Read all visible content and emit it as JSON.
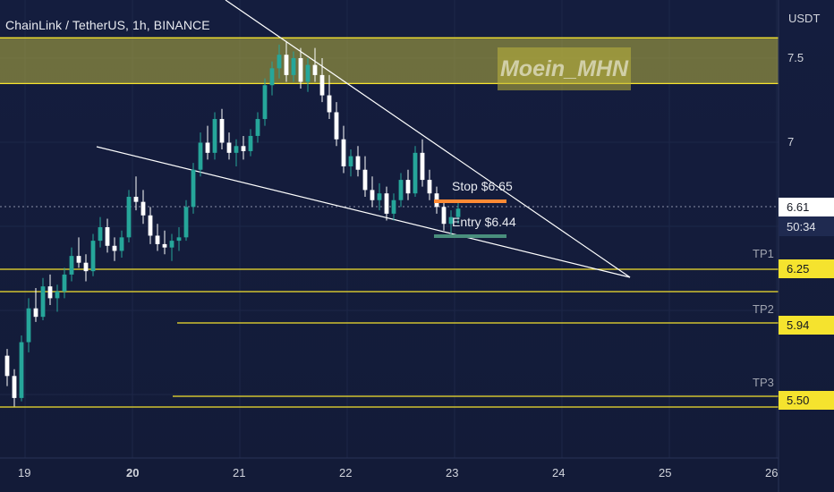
{
  "title": "ChainLink / TetherUS, 1h, BINANCE",
  "currency": "USDT",
  "watermark": "Moein_MHN",
  "colors": {
    "up": "#26a69a",
    "down": "#ffffff",
    "level": "#f5e32e",
    "zone": "#b8b240",
    "stop": "#ff8a35",
    "entry": "#4a8f7d"
  },
  "chart_data": {
    "type": "candlestick",
    "y_ticks": [
      7.5,
      7.0
    ],
    "x_ticks": [
      "19",
      "20",
      "21",
      "22",
      "23",
      "24",
      "25",
      "26"
    ],
    "last_price": "6.61",
    "countdown": "50:34",
    "resistance_zone": [
      7.35,
      7.62
    ],
    "levels": [
      {
        "label": "TP1",
        "value": "6.25"
      },
      {
        "label": "TP2",
        "value": "5.94"
      },
      {
        "label": "TP3",
        "value": "5.50"
      }
    ],
    "stop": {
      "label": "Stop $6.65",
      "value": 6.65
    },
    "entry": {
      "label": "Entry $6.44",
      "value": 6.44
    },
    "candles": [
      [
        5.74,
        5.78,
        5.56,
        5.62
      ],
      [
        5.62,
        5.66,
        5.44,
        5.49
      ],
      [
        5.49,
        5.86,
        5.47,
        5.82
      ],
      [
        5.82,
        6.08,
        5.76,
        6.02
      ],
      [
        6.02,
        6.14,
        5.94,
        5.97
      ],
      [
        5.97,
        6.2,
        5.95,
        6.15
      ],
      [
        6.15,
        6.22,
        6.04,
        6.08
      ],
      [
        6.08,
        6.16,
        6.0,
        6.12
      ],
      [
        6.12,
        6.26,
        6.08,
        6.22
      ],
      [
        6.22,
        6.38,
        6.18,
        6.33
      ],
      [
        6.33,
        6.44,
        6.26,
        6.29
      ],
      [
        6.29,
        6.34,
        6.18,
        6.24
      ],
      [
        6.24,
        6.46,
        6.21,
        6.42
      ],
      [
        6.42,
        6.56,
        6.38,
        6.5
      ],
      [
        6.5,
        6.55,
        6.35,
        6.39
      ],
      [
        6.39,
        6.44,
        6.3,
        6.36
      ],
      [
        6.36,
        6.48,
        6.32,
        6.44
      ],
      [
        6.44,
        6.72,
        6.41,
        6.68
      ],
      [
        6.68,
        6.8,
        6.6,
        6.65
      ],
      [
        6.65,
        6.72,
        6.52,
        6.57
      ],
      [
        6.57,
        6.62,
        6.4,
        6.45
      ],
      [
        6.45,
        6.52,
        6.36,
        6.4
      ],
      [
        6.4,
        6.48,
        6.34,
        6.38
      ],
      [
        6.38,
        6.46,
        6.3,
        6.42
      ],
      [
        6.42,
        6.5,
        6.36,
        6.44
      ],
      [
        6.44,
        6.66,
        6.42,
        6.62
      ],
      [
        6.62,
        6.88,
        6.58,
        6.84
      ],
      [
        6.84,
        7.06,
        6.8,
        7.0
      ],
      [
        7.0,
        7.1,
        6.9,
        6.94
      ],
      [
        6.94,
        7.18,
        6.9,
        7.14
      ],
      [
        7.14,
        7.2,
        6.96,
        7.0
      ],
      [
        7.0,
        7.06,
        6.9,
        6.94
      ],
      [
        6.94,
        7.02,
        6.86,
        6.98
      ],
      [
        6.98,
        7.04,
        6.9,
        6.95
      ],
      [
        6.95,
        7.08,
        6.92,
        7.04
      ],
      [
        7.04,
        7.18,
        7.0,
        7.14
      ],
      [
        7.14,
        7.38,
        7.1,
        7.34
      ],
      [
        7.34,
        7.48,
        7.28,
        7.44
      ],
      [
        7.44,
        7.58,
        7.38,
        7.52
      ],
      [
        7.52,
        7.6,
        7.36,
        7.4
      ],
      [
        7.4,
        7.54,
        7.36,
        7.5
      ],
      [
        7.5,
        7.56,
        7.32,
        7.36
      ],
      [
        7.36,
        7.5,
        7.3,
        7.46
      ],
      [
        7.46,
        7.56,
        7.36,
        7.4
      ],
      [
        7.4,
        7.5,
        7.24,
        7.28
      ],
      [
        7.28,
        7.4,
        7.14,
        7.18
      ],
      [
        7.18,
        7.24,
        6.98,
        7.02
      ],
      [
        7.02,
        7.1,
        6.82,
        6.86
      ],
      [
        6.86,
        6.96,
        6.8,
        6.92
      ],
      [
        6.92,
        6.98,
        6.8,
        6.84
      ],
      [
        6.84,
        6.92,
        6.68,
        6.72
      ],
      [
        6.72,
        6.8,
        6.62,
        6.66
      ],
      [
        6.66,
        6.76,
        6.6,
        6.7
      ],
      [
        6.7,
        6.74,
        6.54,
        6.58
      ],
      [
        6.58,
        6.7,
        6.54,
        6.66
      ],
      [
        6.66,
        6.82,
        6.62,
        6.78
      ],
      [
        6.78,
        6.84,
        6.66,
        6.7
      ],
      [
        6.7,
        6.98,
        6.68,
        6.94
      ],
      [
        6.94,
        7.02,
        6.74,
        6.78
      ],
      [
        6.78,
        6.84,
        6.66,
        6.7
      ],
      [
        6.7,
        6.74,
        6.58,
        6.62
      ],
      [
        6.62,
        6.66,
        6.48,
        6.52
      ],
      [
        6.52,
        6.6,
        6.46,
        6.56
      ],
      [
        6.56,
        6.66,
        6.52,
        6.61
      ]
    ]
  }
}
